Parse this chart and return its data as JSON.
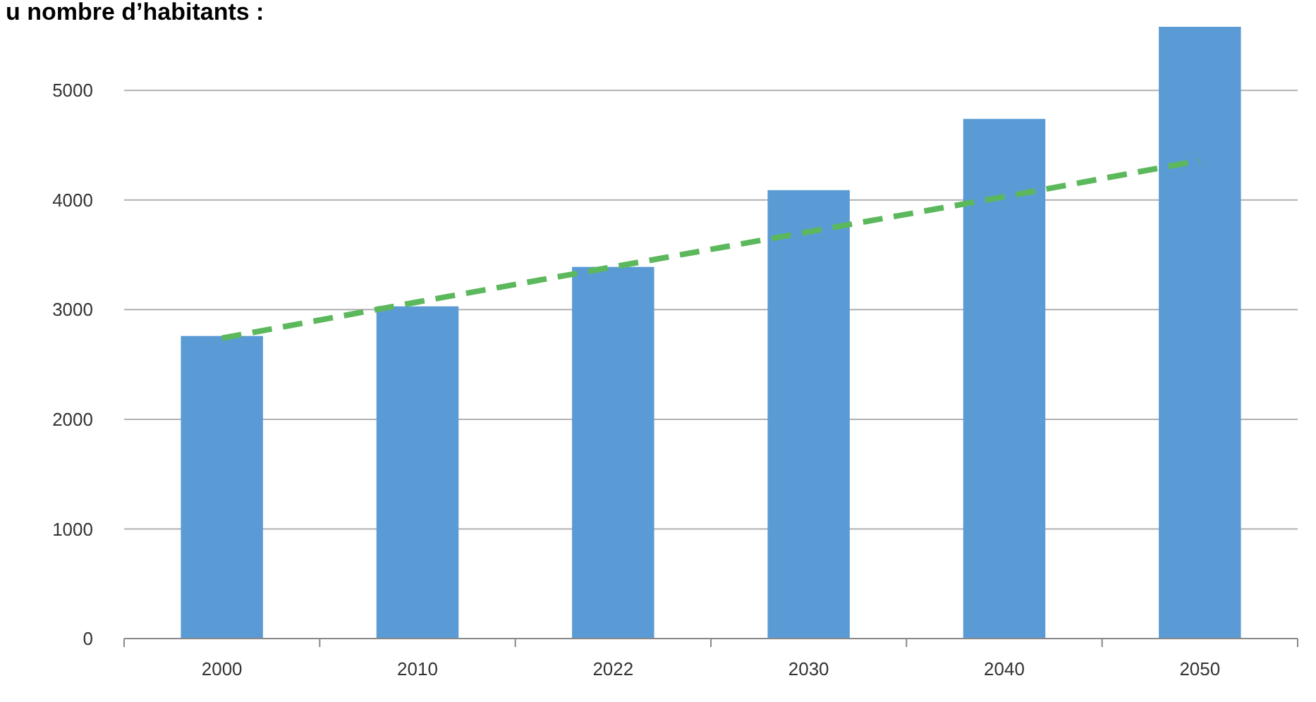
{
  "chart_data": {
    "type": "bar",
    "title": "u nombre d’habitants :",
    "categories": [
      "2000",
      "2010",
      "2022",
      "2030",
      "2040",
      "2050"
    ],
    "series": [
      {
        "color": "#5b9bd5",
        "values": [
          2760,
          3030,
          3390,
          4090,
          4740,
          5580
        ]
      },
      {
        "type": "line",
        "color": "#5cb85c",
        "line_style": "dashed",
        "marker": "none",
        "values": [
          2740,
          3070,
          3390,
          3710,
          4030,
          4360
        ]
      }
    ],
    "ylim": [
      0,
      5580
    ],
    "yticks": [
      0,
      1000,
      2000,
      3000,
      4000,
      5000
    ],
    "grid": "y"
  }
}
